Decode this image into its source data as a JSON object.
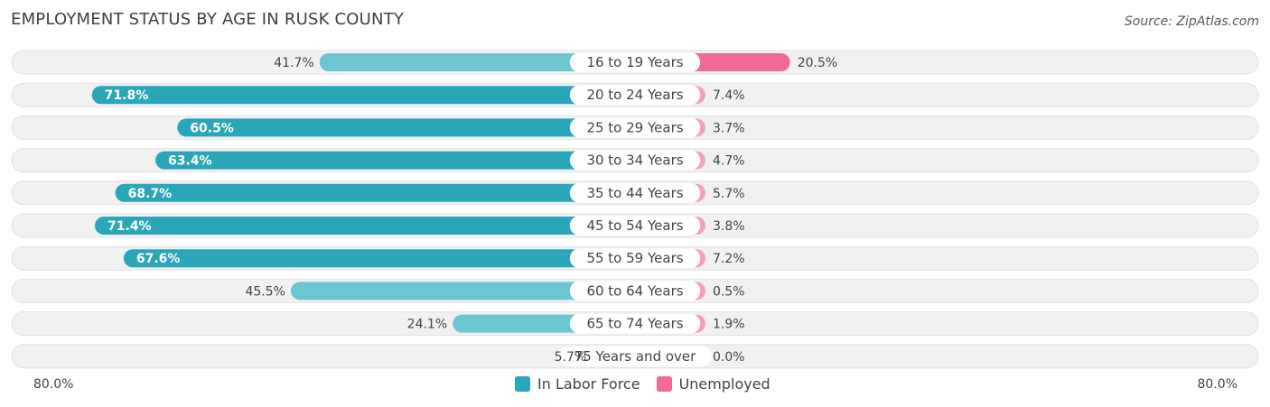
{
  "title": "EMPLOYMENT STATUS BY AGE IN RUSK COUNTY",
  "source": "Source: ZipAtlas.com",
  "colors": {
    "labor_force": "#2aa6b8",
    "labor_force_light": "#6ec5d2",
    "unemployed": "#f06a96",
    "unemployed_light": "#f59fbc",
    "row_bg": "#f1f1f1"
  },
  "legend": {
    "labor_force": "In Labor Force",
    "unemployed": "Unemployed"
  },
  "axis": {
    "left_label": "80.0%",
    "right_label": "80.0%"
  },
  "chart_data": {
    "type": "bar",
    "orientation": "horizontal-diverging",
    "title": "EMPLOYMENT STATUS BY AGE IN RUSK COUNTY",
    "xlim": [
      -80,
      80
    ],
    "categories": [
      "16 to 19 Years",
      "20 to 24 Years",
      "25 to 29 Years",
      "30 to 34 Years",
      "35 to 44 Years",
      "45 to 54 Years",
      "55 to 59 Years",
      "60 to 64 Years",
      "65 to 74 Years",
      "75 Years and over"
    ],
    "series": [
      {
        "name": "In Labor Force",
        "values": [
          41.7,
          71.8,
          60.5,
          63.4,
          68.7,
          71.4,
          67.6,
          45.5,
          24.1,
          5.7
        ],
        "labels": [
          "41.7%",
          "71.8%",
          "60.5%",
          "63.4%",
          "68.7%",
          "71.4%",
          "67.6%",
          "45.5%",
          "24.1%",
          "5.7%"
        ]
      },
      {
        "name": "Unemployed",
        "values": [
          20.5,
          7.4,
          3.7,
          4.7,
          5.7,
          3.8,
          7.2,
          0.5,
          1.9,
          0.0
        ],
        "labels": [
          "20.5%",
          "7.4%",
          "3.7%",
          "4.7%",
          "5.7%",
          "3.8%",
          "7.2%",
          "0.5%",
          "1.9%",
          "0.0%"
        ]
      }
    ],
    "legend_position": "bottom-center"
  }
}
